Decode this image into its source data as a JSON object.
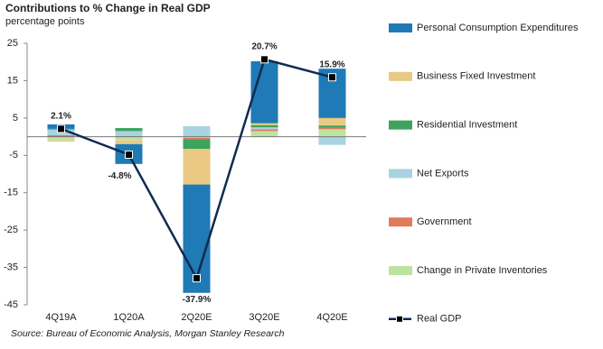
{
  "chart_data": {
    "type": "bar",
    "stacked": true,
    "title": "Contributions to % Change in Real GDP",
    "subtitle": "percentage points",
    "source": "Source: Bureau of Economic Analysis, Morgan Stanley Research",
    "categories": [
      "4Q19A",
      "1Q20A",
      "2Q20E",
      "3Q20E",
      "4Q20E"
    ],
    "ylim": [
      -45,
      25
    ],
    "yticks": [
      -45,
      -35,
      -25,
      -15,
      -5,
      5,
      15,
      25
    ],
    "grid": false,
    "series": [
      {
        "name": "Personal Consumption Expenditures",
        "type": "bar",
        "color": "#1f7ab5",
        "values": [
          1.2,
          -5.3,
          -29.0,
          16.6,
          13.2
        ]
      },
      {
        "name": "Business Fixed Investment",
        "type": "bar",
        "color": "#e9c983",
        "values": [
          -0.3,
          -1.0,
          -9.5,
          0.5,
          2.0
        ]
      },
      {
        "name": "Residential Investment",
        "type": "bar",
        "color": "#3da35d",
        "values": [
          0.2,
          0.8,
          -2.6,
          0.6,
          0.6
        ]
      },
      {
        "name": "Net Exports",
        "type": "bar",
        "color": "#a9d3e0",
        "values": [
          1.5,
          1.3,
          2.8,
          0.5,
          -2.2
        ]
      },
      {
        "name": "Government",
        "type": "bar",
        "color": "#e27a5c",
        "values": [
          0.4,
          0.2,
          -0.4,
          0.5,
          0.4
        ]
      },
      {
        "name": "Change in Private Inventories",
        "type": "bar",
        "color": "#bde3a1",
        "values": [
          -1.0,
          -1.0,
          -0.3,
          1.5,
          2.0
        ]
      },
      {
        "name": "Real GDP",
        "type": "line",
        "color": "#0e2b4f",
        "values": [
          2.1,
          -4.8,
          -37.9,
          20.7,
          15.9
        ],
        "value_labels": [
          "2.1%",
          "-4.8%",
          "-37.9%",
          "20.7%",
          "15.9%"
        ]
      }
    ]
  }
}
